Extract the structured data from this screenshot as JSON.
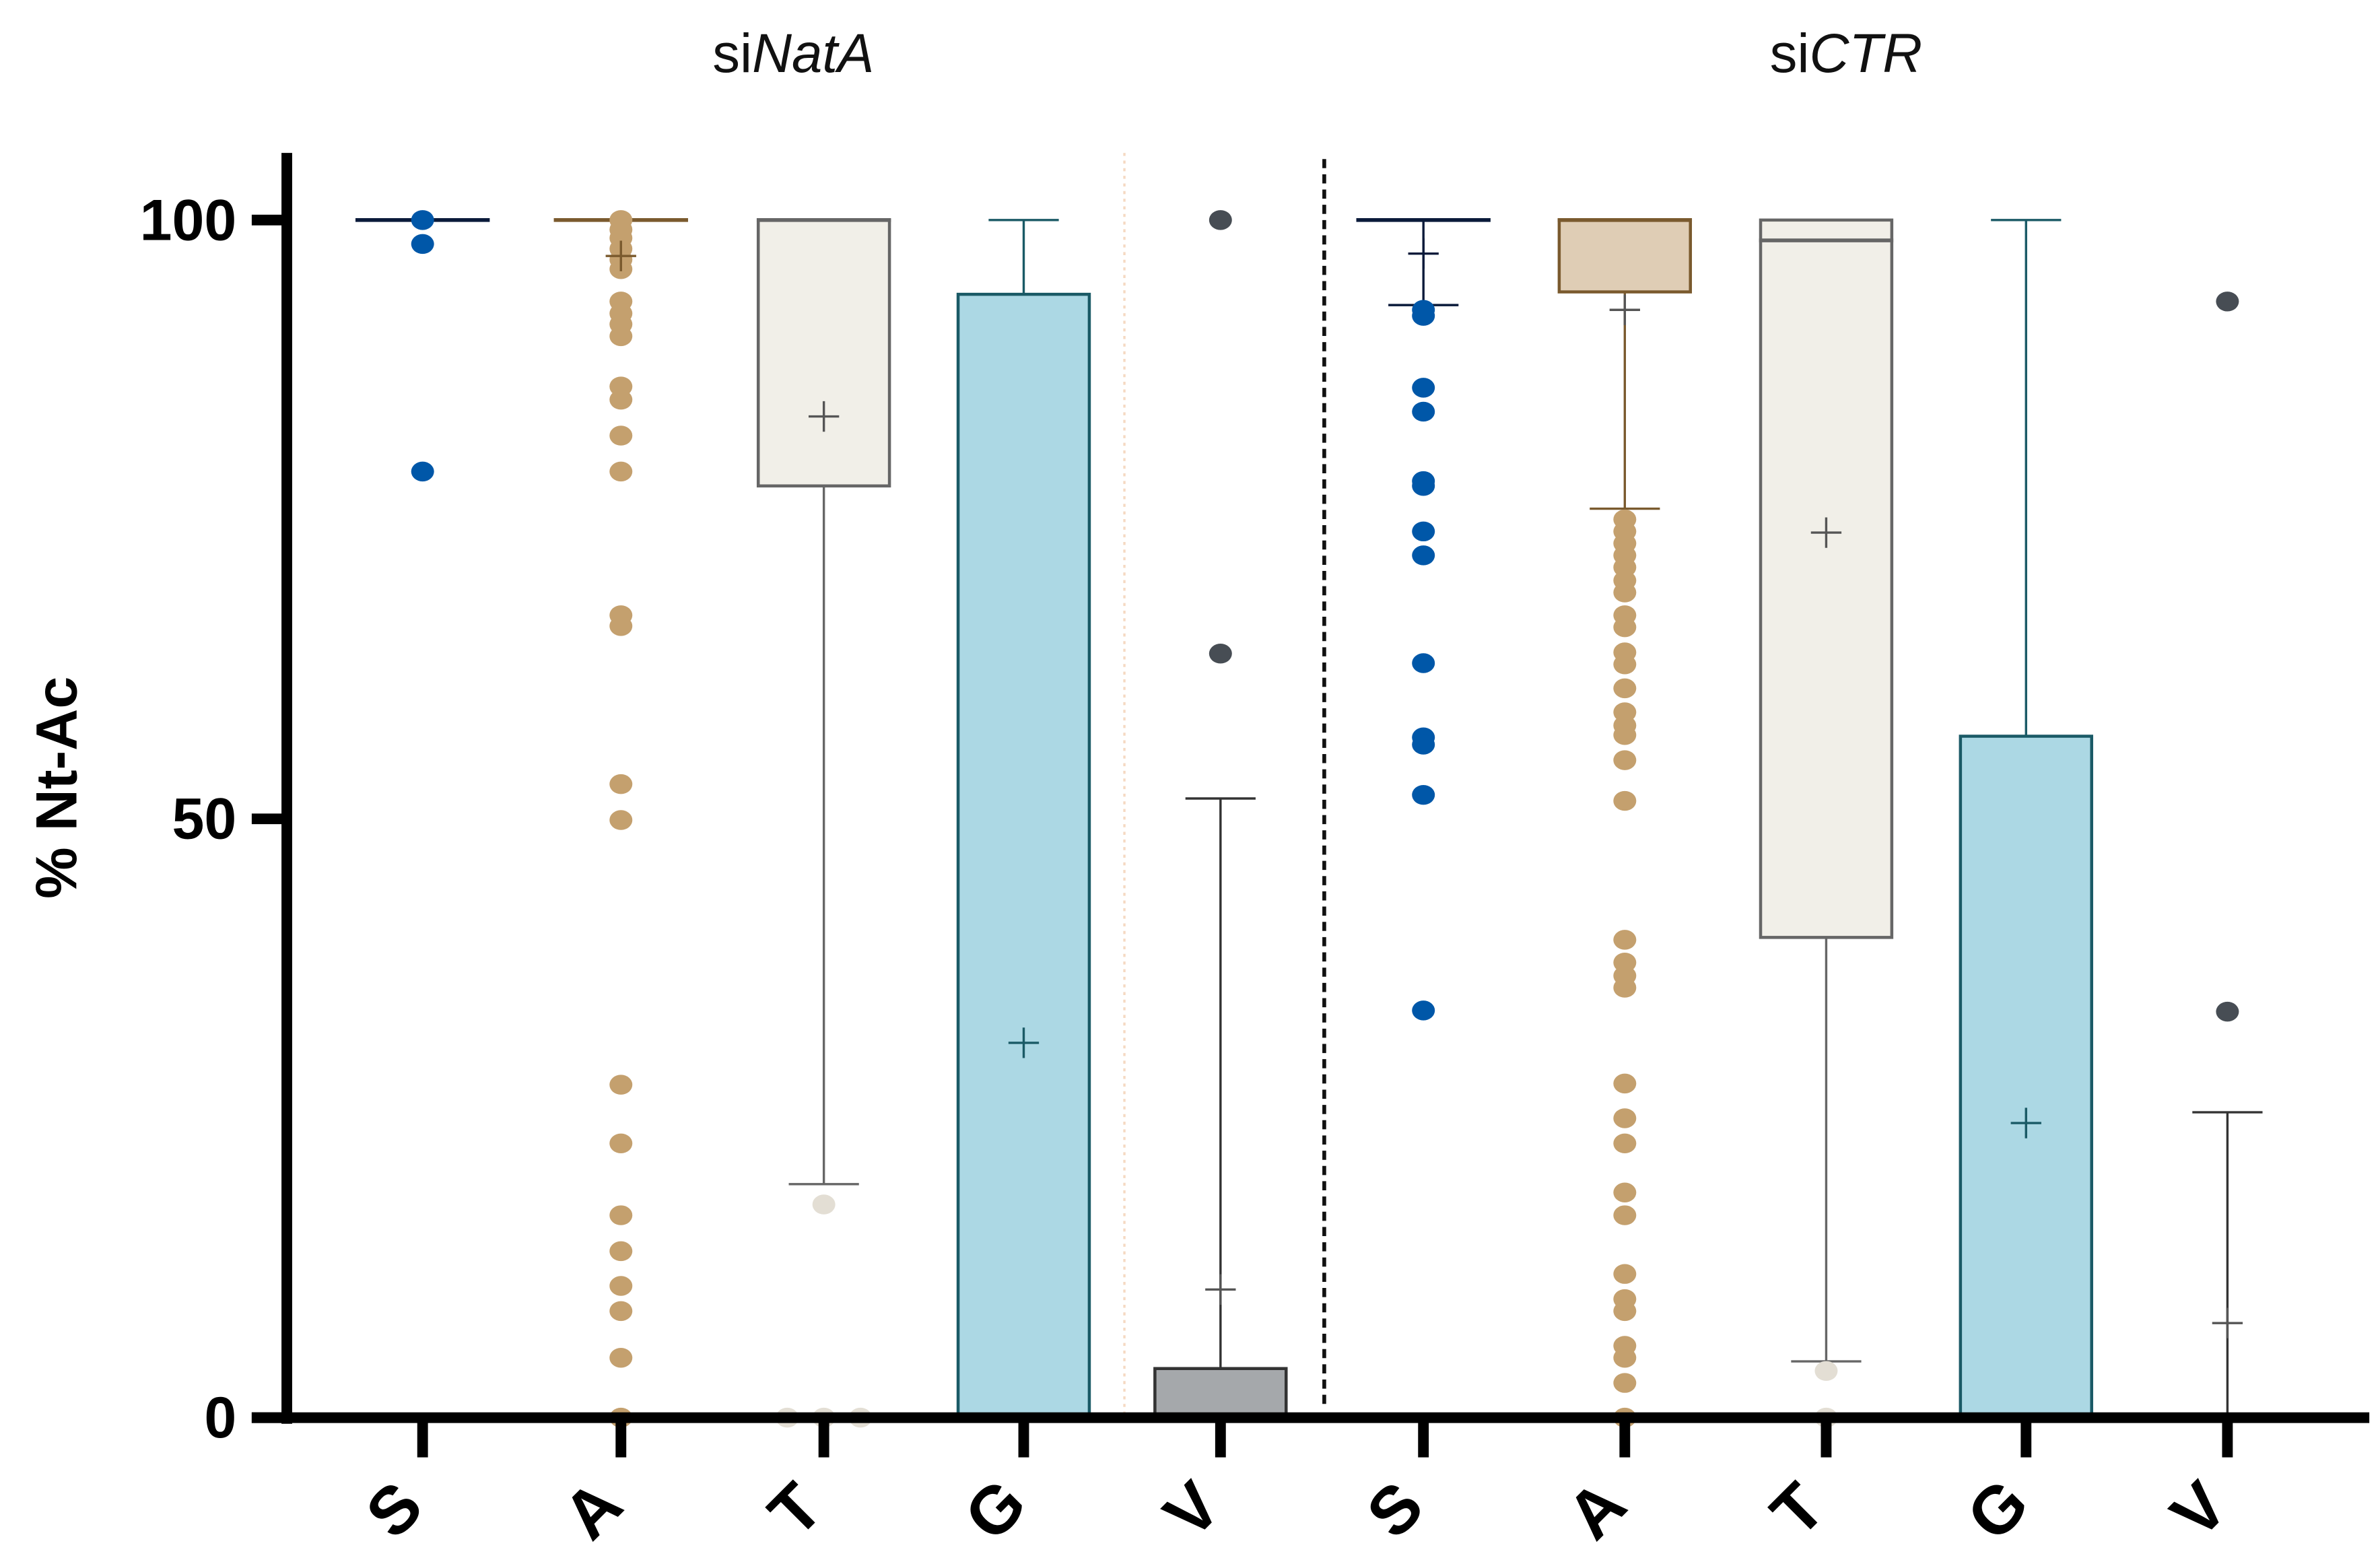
{
  "chart_data": {
    "type": "box",
    "ylabel": "% Nt-Ac",
    "ylim": [
      0,
      100
    ],
    "yticks": [
      "0",
      "50",
      "100"
    ],
    "grid": false,
    "panels": [
      {
        "title_prefix": "si",
        "title_italic": "NatA",
        "groups": [
          {
            "label": "S",
            "color": "#0057a8",
            "line": "#0a1a3a",
            "fill": null,
            "median": 100,
            "box": null,
            "whisker": null,
            "mean": null,
            "points": [
              100,
              98,
              79
            ]
          },
          {
            "label": "A",
            "color": "#c4a06e",
            "line": "#7a5a2e",
            "fill": null,
            "median": 100,
            "box": null,
            "whisker": null,
            "mean": 97,
            "points": [
              100,
              99.2,
              98.5,
              97.6,
              96.7,
              95.9,
              93.2,
              92.2,
              91.3,
              90.3,
              86.1,
              85.0,
              82.0,
              79.0,
              67.0,
              66.1,
              52.9,
              49.9,
              27.8,
              22.9,
              16.9,
              13.9,
              11.0,
              8.9,
              5.0,
              0
            ]
          },
          {
            "label": "T",
            "color": "#e3ded4",
            "line": "#666666",
            "fill": "#f1efe8",
            "median": 100,
            "box": [
              77.8,
              100
            ],
            "whisker": [
              19.5,
              100
            ],
            "mean": 83.6,
            "points": [
              17.8,
              0,
              0,
              0
            ]
          },
          {
            "label": "G",
            "color": "#1a5a66",
            "line": "#1a5a66",
            "fill": "#acd8e4",
            "median": 0,
            "box": [
              0,
              93.8
            ],
            "whisker": [
              0,
              100
            ],
            "mean": 31.3,
            "points": []
          },
          {
            "label": "V",
            "color": "#474d54",
            "line": "#333333",
            "fill": "#a5a8ab",
            "median": 0,
            "box": [
              0,
              4.1
            ],
            "whisker": [
              0,
              51.7
            ],
            "mean": 10.7,
            "points": [
              100,
              63.8
            ]
          }
        ]
      },
      {
        "title_prefix": "si",
        "title_italic": "CTR",
        "groups": [
          {
            "label": "S",
            "color": "#0057a8",
            "line": "#0a1a3a",
            "fill": null,
            "median": 100,
            "box": null,
            "whisker": [
              92.9,
              100
            ],
            "mean": 97.2,
            "points": [
              92.5,
              92,
              86,
              84,
              78.2,
              77.8,
              74,
              72,
              63,
              56.8,
              56.2,
              52,
              34
            ]
          },
          {
            "label": "A",
            "color": "#c4a06e",
            "line": "#7a5a2e",
            "fill": "#dfcdb5",
            "median": 100,
            "box": [
              94,
              100
            ],
            "whisker": [
              75.9,
              100
            ],
            "mean": 92.5,
            "points": [
              75.0,
              74.0,
              73.0,
              72.0,
              71.0,
              69.9,
              68.9,
              67.0,
              66.0,
              63.9,
              62.9,
              60.9,
              58.9,
              57.8,
              57.0,
              54.9,
              51.5,
              39.9,
              38.0,
              36.9,
              35.9,
              27.9,
              25.0,
              22.9,
              18.8,
              16.9,
              12.0,
              9.9,
              8.9,
              6.0,
              5.0,
              2.9,
              0
            ]
          },
          {
            "label": "T",
            "color": "#e3ded4",
            "line": "#666666",
            "fill": "#f1efe8",
            "median": 98.3,
            "box": [
              40.1,
              100
            ],
            "whisker": [
              4.7,
              100
            ],
            "mean": 73.9,
            "points": [
              3.9,
              0
            ]
          },
          {
            "label": "G",
            "color": "#1a5a66",
            "line": "#1a5a66",
            "fill": "#acd8e4",
            "median": 0,
            "box": [
              0,
              56.9
            ],
            "whisker": [
              0,
              100
            ],
            "mean": 24.6,
            "points": []
          },
          {
            "label": "V",
            "color": "#474d54",
            "line": "#333333",
            "fill": "#a5a8ab",
            "median": 0,
            "box": [
              0,
              0
            ],
            "whisker": [
              0,
              25.5
            ],
            "mean": 7.9,
            "points": [
              93.2,
              33.9
            ]
          }
        ]
      }
    ]
  }
}
